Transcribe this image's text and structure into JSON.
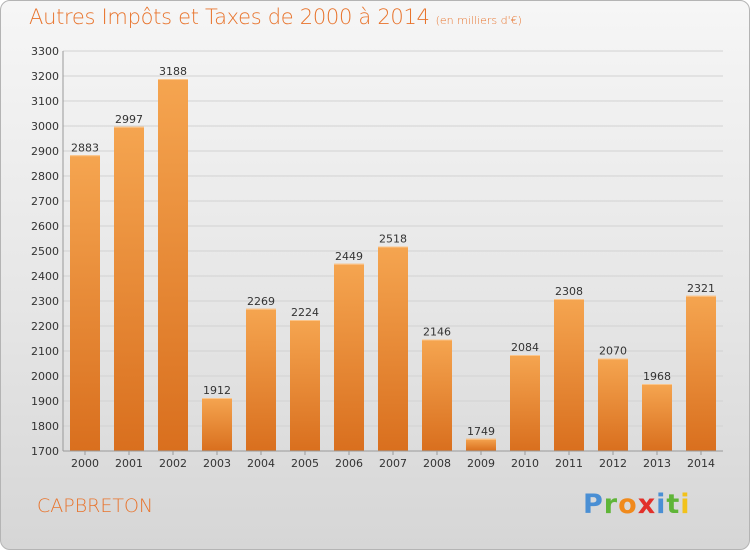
{
  "chart_data": {
    "type": "bar",
    "title": "Autres Impôts et Taxes de 2000 à 2014",
    "subtitle": "(en milliers d'€)",
    "categories": [
      "2000",
      "2001",
      "2002",
      "2003",
      "2004",
      "2005",
      "2006",
      "2007",
      "2008",
      "2009",
      "2010",
      "2011",
      "2012",
      "2013",
      "2014"
    ],
    "values": [
      2883,
      2997,
      3188,
      1912,
      2269,
      2224,
      2449,
      2518,
      2146,
      1749,
      2084,
      2308,
      2070,
      1968,
      2321
    ],
    "ylim": [
      1700,
      3300
    ],
    "yticks": [
      1700,
      1800,
      1900,
      2000,
      2100,
      2200,
      2300,
      2400,
      2500,
      2600,
      2700,
      2800,
      2900,
      3000,
      3100,
      3200,
      3300
    ],
    "xlabel": "",
    "ylabel": "",
    "grid": true,
    "bar_color": "#f0923a",
    "bar_color_dark": "#dc7124"
  },
  "footer": {
    "commune": "CAPBRETON"
  },
  "logo": {
    "letters": [
      {
        "ch": "P",
        "color": "#4a8fd4"
      },
      {
        "ch": "r",
        "color": "#5fb538"
      },
      {
        "ch": "o",
        "color": "#f08a1c"
      },
      {
        "ch": "x",
        "color": "#e2302a"
      },
      {
        "ch": "i",
        "color": "#4a8fd4"
      },
      {
        "ch": "t",
        "color": "#5fb538"
      },
      {
        "ch": "i",
        "color": "#f2c21a"
      }
    ]
  }
}
